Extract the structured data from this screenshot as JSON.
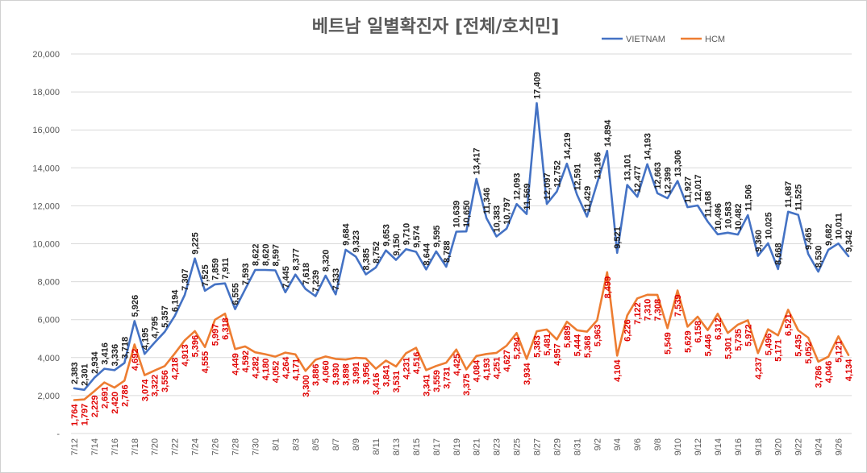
{
  "chart_data": {
    "type": "line",
    "title": "베트남  일별확진자 [전체/호치민]",
    "xlabel": "",
    "ylabel": "",
    "ylim": [
      0,
      20000
    ],
    "y_ticks": [
      "-",
      "2,000",
      "4,000",
      "6,000",
      "8,000",
      "10,000",
      "12,000",
      "14,000",
      "16,000",
      "18,000",
      "20,000"
    ],
    "x": [
      "7/12",
      "7/13",
      "7/14",
      "7/15",
      "7/16",
      "7/17",
      "7/18",
      "7/19",
      "7/20",
      "7/21",
      "7/22",
      "7/23",
      "7/24",
      "7/25",
      "7/26",
      "7/27",
      "7/28",
      "7/29",
      "7/30",
      "7/31",
      "8/1",
      "8/2",
      "8/3",
      "8/4",
      "8/5",
      "8/6",
      "8/7",
      "8/8",
      "8/9",
      "8/10",
      "8/11",
      "8/12",
      "8/13",
      "8/14",
      "8/15",
      "8/16",
      "8/17",
      "8/18",
      "8/19",
      "8/20",
      "8/21",
      "8/22",
      "8/23",
      "8/24",
      "8/25",
      "8/26",
      "8/27",
      "8/28",
      "8/29",
      "8/30",
      "8/31",
      "9/1",
      "9/2",
      "9/3",
      "9/4",
      "9/5",
      "9/6",
      "9/7",
      "9/8",
      "9/9",
      "9/10",
      "9/11",
      "9/12",
      "9/13",
      "9/14",
      "9/15",
      "9/16",
      "9/17",
      "9/18",
      "9/19",
      "9/20",
      "9/21",
      "9/22",
      "9/23",
      "9/24",
      "9/25",
      "9/26",
      "9/27"
    ],
    "x_tick_labels": [
      "7/12",
      "7/14",
      "7/16",
      "7/18",
      "7/20",
      "7/22",
      "7/24",
      "7/26",
      "7/28",
      "7/30",
      "8/1",
      "8/3",
      "8/5",
      "8/7",
      "8/9",
      "8/11",
      "8/13",
      "8/15",
      "8/17",
      "8/19",
      "8/21",
      "8/23",
      "8/25",
      "8/27",
      "8/29",
      "8/31",
      "9/2",
      "9/4",
      "9/6",
      "9/8",
      "9/10",
      "9/12",
      "9/14",
      "9/16",
      "9/18",
      "9/20",
      "9/22",
      "9/24",
      "9/26"
    ],
    "legend_position": "top-right",
    "series": [
      {
        "name": "VIETNAM",
        "color": "#4472c4",
        "values": [
          2383,
          2301,
          2934,
          3416,
          3336,
          3718,
          5926,
          4195,
          4795,
          5357,
          6194,
          7307,
          9225,
          7525,
          7859,
          7911,
          6555,
          7593,
          8622,
          8620,
          8597,
          7445,
          8377,
          7618,
          7239,
          8320,
          7333,
          9684,
          9323,
          8385,
          8752,
          9653,
          9150,
          9710,
          9574,
          8644,
          9595,
          8788,
          10639,
          10650,
          13417,
          11346,
          10383,
          10797,
          12093,
          11569,
          17409,
          12097,
          12752,
          14219,
          12591,
          11429,
          13186,
          14894,
          9521,
          13101,
          12477,
          14193,
          12663,
          12399,
          13306,
          11927,
          12017,
          11168,
          10496,
          10583,
          10482,
          11506,
          9360,
          10025,
          8668,
          11687,
          11525,
          9465,
          8530,
          9682,
          10011,
          9342
        ],
        "labels": [
          "2,383",
          "2,301",
          "2,934",
          "3,416",
          "3,336",
          "3,718",
          "5,926",
          "4,195",
          "4,795",
          "5,357",
          "6,194",
          "7,307",
          "9,225",
          "7,525",
          "7,859",
          "7,911",
          "6,555",
          "7,593",
          "8,622",
          "8,620",
          "8,597",
          "7,445",
          "8,377",
          "7,618",
          "7,239",
          "8,320",
          "7,333",
          "9,684",
          "9,323",
          "8,385",
          "8,752",
          "9,653",
          "9,150",
          "9,710",
          "9,574",
          "8,644",
          "9,595",
          "8,788",
          "10,639",
          "10,650",
          "13,417",
          "11,346",
          "10,383",
          "10,797",
          "12,093",
          "11,569",
          "17,409",
          "12,097",
          "12,752",
          "14,219",
          "12,591",
          "11,429",
          "13,186",
          "14,894",
          "9,521",
          "13,101",
          "12,477",
          "14,193",
          "12,663",
          "12,399",
          "13,306",
          "11,927",
          "12,017",
          "11,168",
          "10,496",
          "10,583",
          "10,482",
          "11,506",
          "9,360",
          "10,025",
          "8,668",
          "11,687",
          "11,525",
          "9,465",
          "8,530",
          "9,682",
          "10,011",
          "9,342"
        ]
      },
      {
        "name": "HCM",
        "color": "#ed7d31",
        "values": [
          1764,
          1797,
          2229,
          2691,
          2420,
          2786,
          4692,
          3074,
          3322,
          3556,
          4218,
          4913,
          5396,
          4555,
          5997,
          6318,
          4449,
          4592,
          4282,
          4180,
          4052,
          4264,
          4171,
          3300,
          3886,
          4060,
          3930,
          3898,
          3991,
          3956,
          3416,
          3841,
          3531,
          4231,
          4516,
          3341,
          3559,
          3731,
          4425,
          3375,
          4084,
          4193,
          4251,
          4627,
          5294,
          3934,
          5383,
          5481,
          4957,
          5889,
          5444,
          5368,
          5963,
          8499,
          4104,
          6226,
          7122,
          7310,
          7308,
          5549,
          7539,
          5629,
          6158,
          5446,
          6312,
          5301,
          5735,
          5972,
          4237,
          5496,
          5171,
          6521,
          5435,
          5052,
          3786,
          4046,
          5121,
          4134
        ],
        "labels": [
          "1,764",
          "1,797",
          "2,229",
          "2,691",
          "2,420",
          "2,786",
          "4,692",
          "3,074",
          "3,322",
          "3,556",
          "4,218",
          "4,913",
          "5,396",
          "4,555",
          "5,997",
          "6,318",
          "4,449",
          "4,592",
          "4,282",
          "4,180",
          "4,052",
          "4,264",
          "4,171",
          "3,300",
          "3,886",
          "4,060",
          "3,930",
          "3,898",
          "3,991",
          "3,956",
          "3,416",
          "3,841",
          "3,531",
          "4,231",
          "4,516",
          "3,341",
          "3,559",
          "3,731",
          "4,425",
          "3,375",
          "4,084",
          "4,193",
          "4,251",
          "4,627",
          "5,294",
          "3,934",
          "5,383",
          "5,481",
          "4,957",
          "5,889",
          "5,444",
          "5,368",
          "5,963",
          "8,499",
          "4,104",
          "6,226",
          "7,122",
          "7,310",
          "7,308",
          "5,549",
          "7,539",
          "5,629",
          "6,158",
          "5,446",
          "6,312",
          "5,301",
          "5,735",
          "5,972",
          "4,237",
          "5,496",
          "5,171",
          "6,521",
          "5,435",
          "5,052",
          "3,786",
          "4,046",
          "5,121",
          "4,134"
        ]
      }
    ]
  }
}
